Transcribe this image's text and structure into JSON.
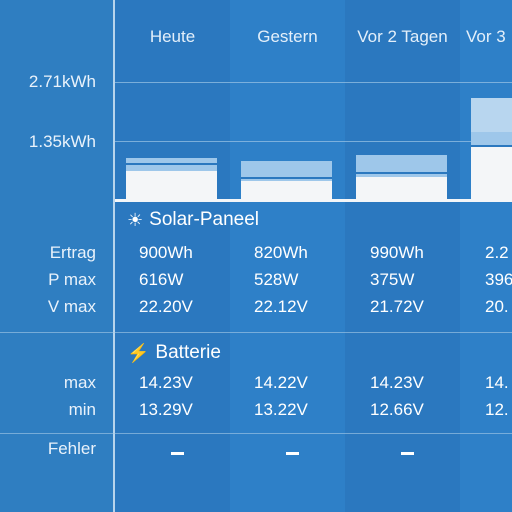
{
  "chart": {
    "axis_labels": [
      "2.71kWh",
      "1.35kWh"
    ]
  },
  "days": [
    "Heute",
    "Gestern",
    "Vor 2 Tagen",
    "Vor 3"
  ],
  "solar": {
    "title": "Solar-Paneel",
    "icon": "sun-icon",
    "labels": {
      "ertrag": "Ertrag",
      "pmax": "P max",
      "vmax": "V max"
    },
    "ertrag": [
      "900Wh",
      "820Wh",
      "990Wh",
      "2.2"
    ],
    "pmax": [
      "616W",
      "528W",
      "375W",
      "396"
    ],
    "vmax": [
      "22.20V",
      "22.12V",
      "21.72V",
      "20."
    ]
  },
  "battery": {
    "title": "Batterie",
    "icon": "lightning-icon",
    "labels": {
      "max": "max",
      "min": "min"
    },
    "max": [
      "14.23V",
      "14.22V",
      "14.23V",
      "14."
    ],
    "min": [
      "13.29V",
      "13.22V",
      "12.66V",
      "12."
    ]
  },
  "errors": {
    "label": "Fehler",
    "values": [
      "dash",
      "dash",
      "dash",
      ""
    ]
  }
}
